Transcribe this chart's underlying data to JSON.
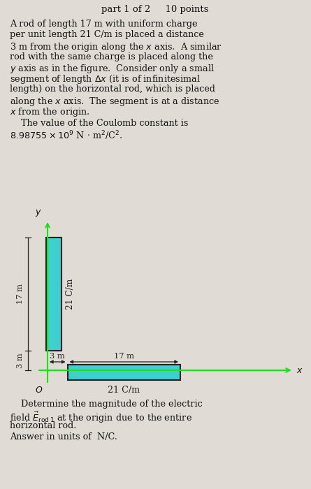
{
  "bg_color": "#e0dbd4",
  "title": "part 1 of 2     10 points",
  "body_text": [
    "A rod of length 17 m with uniform charge",
    "per unit length 21 C/m is placed a distance",
    "3 m from the origin along the $x$ axis.  A similar",
    "rod with the same charge is placed along the",
    "$y$ axis as in the figure.  Consider only a small",
    "segment of length $\\Delta x$ (it is of infinitesimal",
    "length) on the horizontal rod, which is placed",
    "along the $x$ axis.  The segment is at a distance",
    "$x$ from the origin."
  ],
  "coulomb_line1": "    The value of the Coulomb constant is",
  "coulomb_line2": "$8.98755 \\times 10^9$ N $\\cdot$ m$^2$/C$^2$.",
  "rod_fill": "#3ecfcf",
  "rod_edge": "#222222",
  "axis_color": "#22dd22",
  "dim_color": "#222222",
  "bottom_text_line1": "    Determine the magnitude of the electric",
  "bottom_text_line2": "field $\\vec{E}_{\\mathrm{rod\\,1}}$ at the origin due to the entire",
  "bottom_text_line3": "horizontal rod.",
  "bottom_text_line4": "Answer in units of  N/C."
}
